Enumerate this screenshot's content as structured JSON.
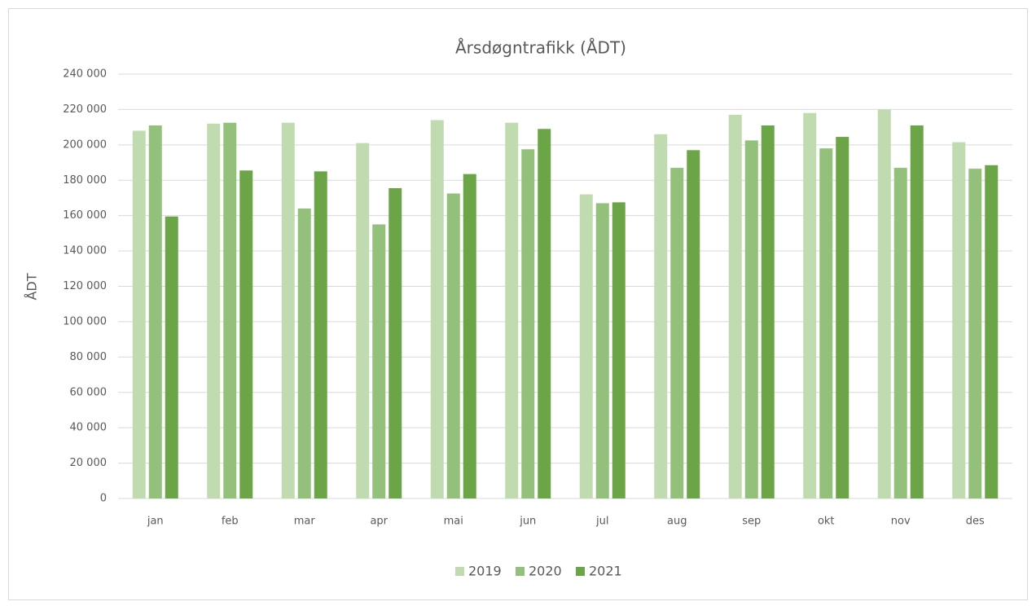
{
  "chart_data": {
    "type": "bar",
    "title": "Årsdøgntrafikk (ÅDT)",
    "y_label": "ÅDT",
    "categories": [
      "jan",
      "feb",
      "mar",
      "apr",
      "mai",
      "jun",
      "jul",
      "aug",
      "sep",
      "okt",
      "nov",
      "des"
    ],
    "series": [
      {
        "name": "2019",
        "color": "#c0dbb0",
        "values": [
          208000,
          212000,
          212500,
          201000,
          214000,
          212500,
          172000,
          206000,
          217000,
          218000,
          220000,
          201500
        ]
      },
      {
        "name": "2020",
        "color": "#93c17b",
        "values": [
          211000,
          212500,
          164000,
          155000,
          172500,
          197500,
          167000,
          187000,
          202500,
          198000,
          187000,
          186500
        ]
      },
      {
        "name": "2021",
        "color": "#6ba547",
        "values": [
          159500,
          185500,
          185000,
          175500,
          183500,
          209000,
          167500,
          197000,
          211000,
          204500,
          211000,
          188500
        ]
      }
    ],
    "ylim": [
      0,
      240000
    ],
    "yticks": [
      0,
      {
        "value": 20000,
        "label": "20 000"
      },
      {
        "value": 40000,
        "label": "40 000"
      },
      {
        "value": 60000,
        "label": "60 000"
      },
      {
        "value": 80000,
        "label": "80 000"
      },
      {
        "value": 100000,
        "label": "100 000"
      },
      {
        "value": 120000,
        "label": "120 000"
      },
      {
        "value": 140000,
        "label": "140 000"
      },
      {
        "value": 160000,
        "label": "160 000"
      },
      {
        "value": 180000,
        "label": "180 000"
      },
      {
        "value": 200000,
        "label": "200 000"
      },
      {
        "value": 220000,
        "label": "220 000"
      },
      {
        "value": 240000,
        "label": "240 000"
      }
    ],
    "grid": true,
    "legend": "bottom"
  }
}
